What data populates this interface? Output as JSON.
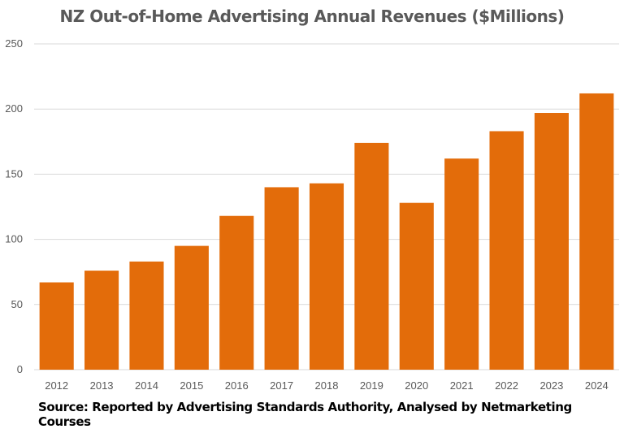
{
  "chart_data": {
    "type": "bar",
    "title": "NZ Out-of-Home Advertising Annual Revenues ($Millions)",
    "categories": [
      "2012",
      "2013",
      "2014",
      "2015",
      "2016",
      "2017",
      "2018",
      "2019",
      "2020",
      "2021",
      "2022",
      "2023",
      "2024"
    ],
    "values": [
      67,
      76,
      83,
      95,
      118,
      140,
      143,
      174,
      128,
      162,
      183,
      197,
      212
    ],
    "xlabel": "",
    "ylabel": "",
    "ylim": [
      0,
      250
    ],
    "yticks": [
      0,
      50,
      100,
      150,
      200,
      250
    ],
    "grid": true,
    "bar_color": "#E36C0A",
    "source": "Source: Reported by Advertising Standards Authority, Analysed by Netmarketing Courses"
  }
}
